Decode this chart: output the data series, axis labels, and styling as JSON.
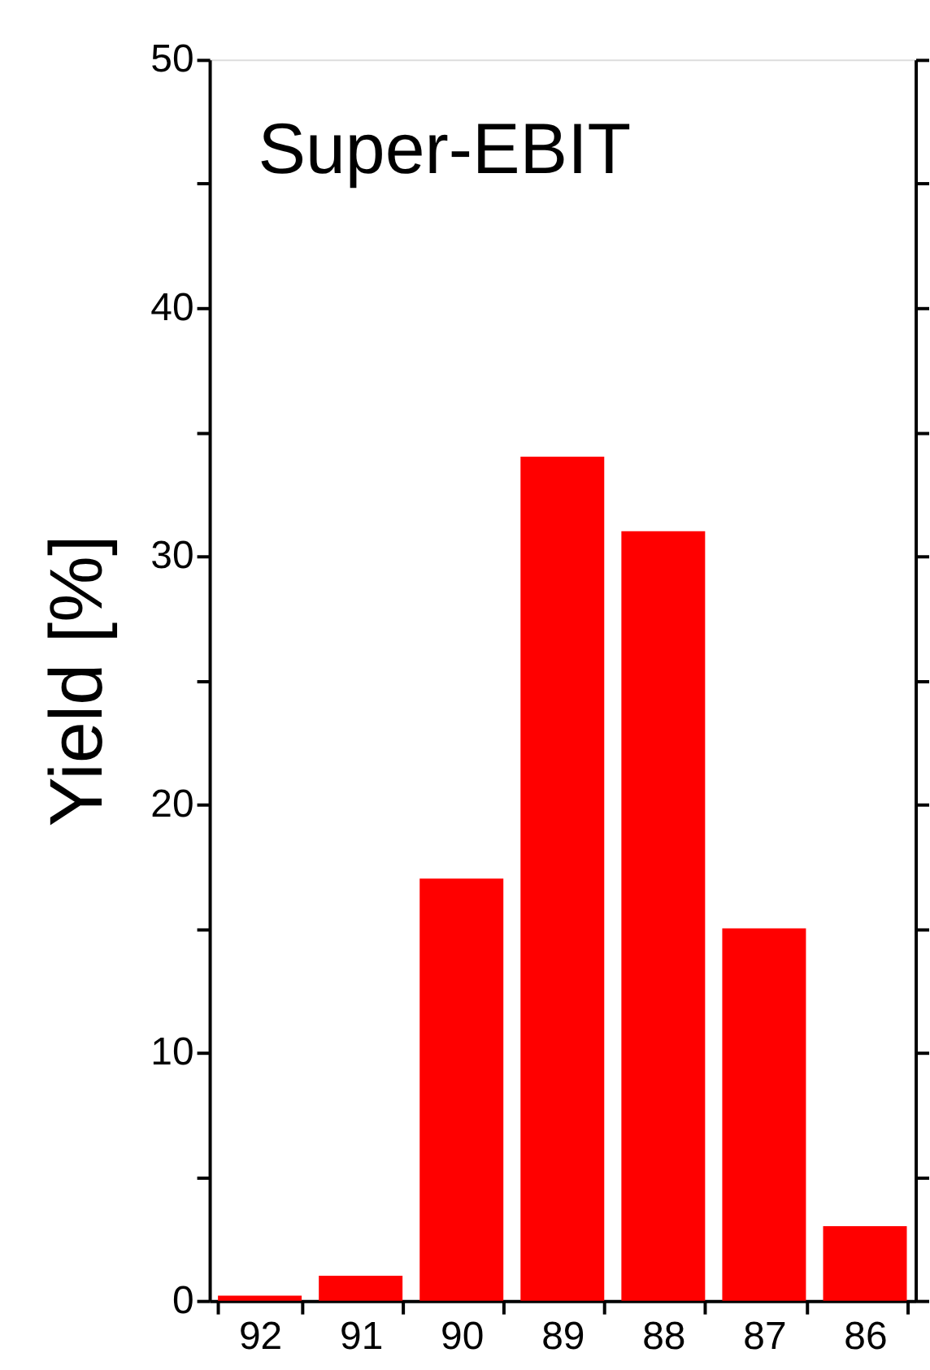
{
  "chart_data": {
    "type": "bar",
    "title": "Super-EBIT",
    "ylabel": "Yield [%]",
    "categories": [
      "92",
      "91",
      "90",
      "89",
      "88",
      "87",
      "86"
    ],
    "values": [
      0.2,
      1,
      17,
      34,
      31,
      15,
      3
    ],
    "color": "#ff0000",
    "ylim": [
      0,
      50
    ],
    "yticks": [
      0,
      {
        "value": 5,
        "label": null
      },
      10,
      {
        "value": 15,
        "label": null
      },
      20,
      {
        "value": 25,
        "label": null
      },
      30,
      {
        "value": 35,
        "label": null
      },
      40,
      {
        "value": 45,
        "label": null
      },
      50
    ],
    "grid": false
  }
}
